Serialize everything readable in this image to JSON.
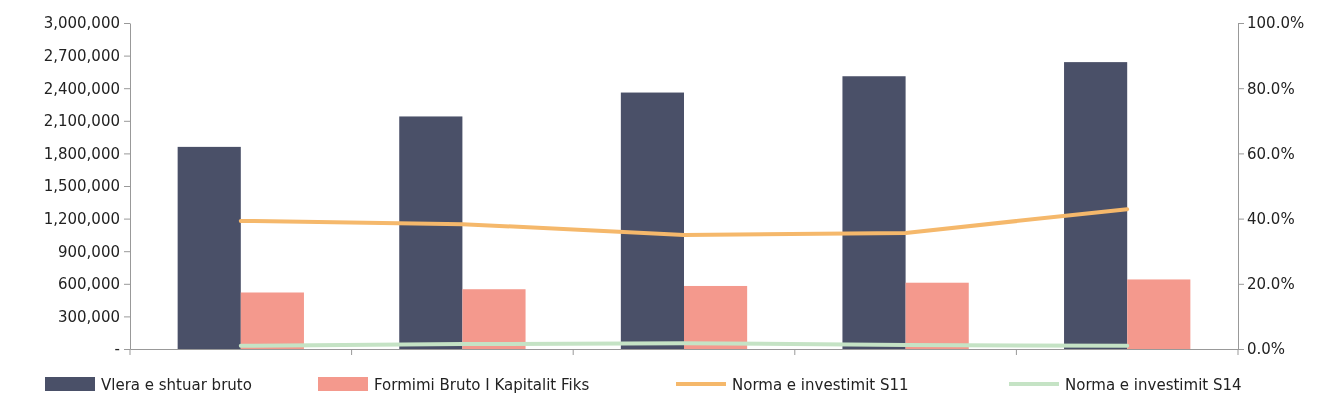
{
  "chart_data": {
    "type": "bar",
    "categories": [
      null,
      null,
      null,
      null,
      null
    ],
    "series": [
      {
        "name": "Vlera e shtuar bruto",
        "color": "#4a5068",
        "values": [
          1860000,
          2140000,
          2360000,
          2510000,
          2640000
        ]
      },
      {
        "name": "Formimi Bruto I Kapitalit Fiks",
        "color": "#f4998d",
        "values": [
          520000,
          550000,
          580000,
          610000,
          640000
        ]
      },
      {
        "name": "Norma e investimit S11",
        "type": "line",
        "axis": "y2",
        "color": "#f5b86b",
        "values": [
          39.3,
          38.3,
          35.0,
          35.6,
          42.9
        ]
      },
      {
        "name": "Norma e investimit S14",
        "type": "line",
        "axis": "y2",
        "color": "#c5e3c5",
        "values": [
          1.0,
          1.5,
          1.8,
          1.2,
          1.0
        ]
      }
    ],
    "ylim": [
      0,
      3000000
    ],
    "yticks": [
      {
        "value": 0,
        "label": "-"
      },
      {
        "value": 300000,
        "label": "300,000"
      },
      {
        "value": 600000,
        "label": "600,000"
      },
      {
        "value": 900000,
        "label": "900,000"
      },
      {
        "value": 1200000,
        "label": "1,200,000"
      },
      {
        "value": 1500000,
        "label": "1,500,000"
      },
      {
        "value": 1800000,
        "label": "1,800,000"
      },
      {
        "value": 2100000,
        "label": "2,100,000"
      },
      {
        "value": 2400000,
        "label": "2,400,000"
      },
      {
        "value": 2700000,
        "label": "2,700,000"
      },
      {
        "value": 3000000,
        "label": "3,000,000"
      }
    ],
    "y2lim": [
      0,
      100
    ],
    "y2ticks": [
      {
        "value": 0,
        "label": "0.0%"
      },
      {
        "value": 20,
        "label": "20.0%"
      },
      {
        "value": 40,
        "label": "40.0%"
      },
      {
        "value": 60,
        "label": "60.0%"
      },
      {
        "value": 80,
        "label": "80.0%"
      },
      {
        "value": 100,
        "label": "100.0%"
      }
    ],
    "legend": "bottom",
    "grid": false
  }
}
